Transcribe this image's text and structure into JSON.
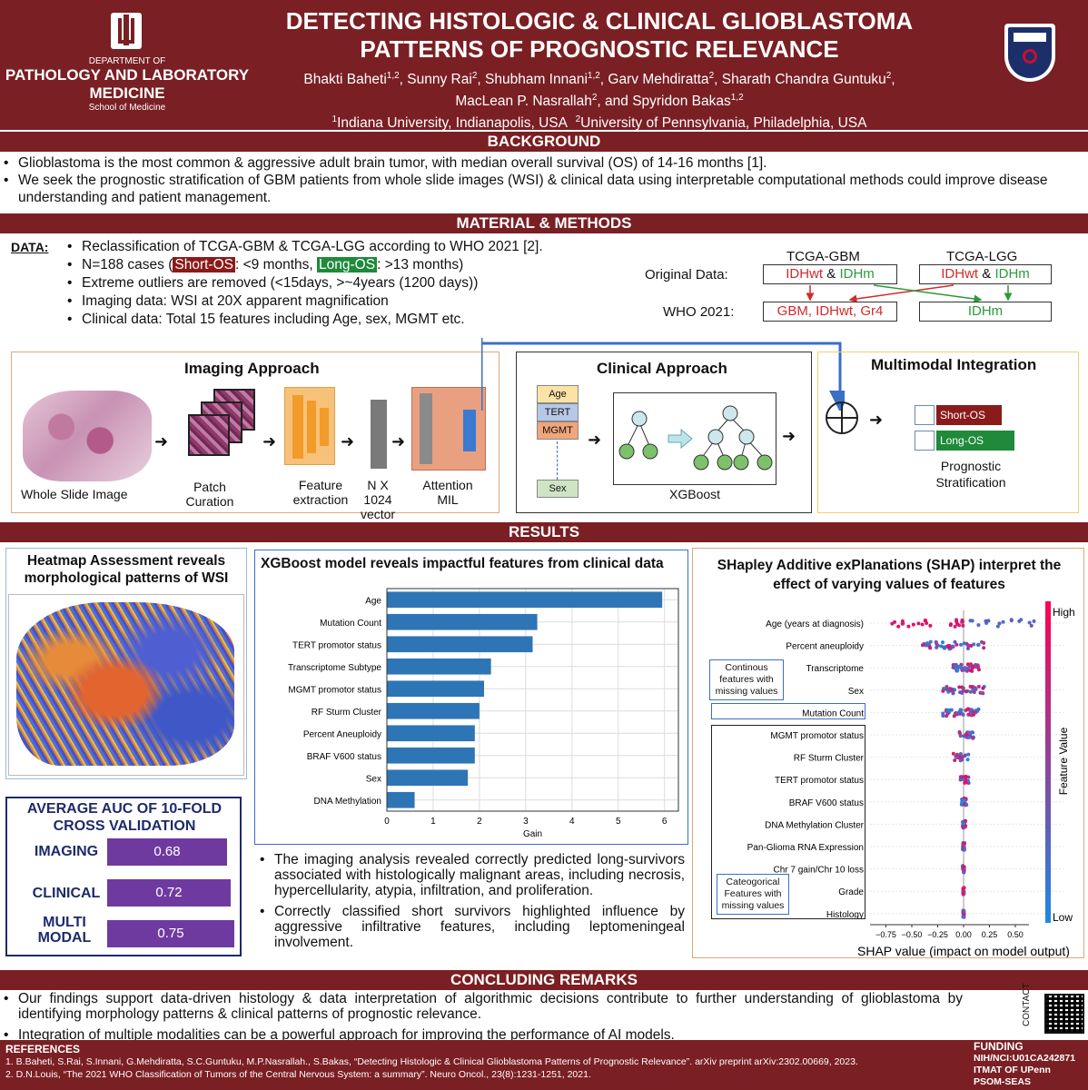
{
  "header": {
    "dept_line1": "DEPARTMENT OF",
    "dept_line2": "PATHOLOGY AND LABORATORY",
    "dept_line3": "MEDICINE",
    "dept_line4": "School of Medicine",
    "title_line1": "DETECTING HISTOLOGIC & CLINICAL GLIOBLASTOMA",
    "title_line2": "PATTERNS OF PROGNOSTIC RELEVANCE",
    "authors": [
      {
        "name": "Bhakti Baheti",
        "aff": "1,2",
        "sep": ", "
      },
      {
        "name": "Sunny Rai",
        "aff": "2",
        "sep": ", "
      },
      {
        "name": "Shubham Innani",
        "aff": "1,2",
        "sep": ", "
      },
      {
        "name": "Garv Mehdiratta",
        "aff": "2",
        "sep": ",  "
      },
      {
        "name": "Sharath Chandra Guntuku",
        "aff": "2",
        "sep": ","
      }
    ],
    "authors2": [
      {
        "name": "MacLean P. Nasrallah",
        "aff": "2",
        "sep": ", and "
      },
      {
        "name": "Spyridon Bakas",
        "aff": "1,2",
        "sep": ""
      }
    ],
    "affil1_num": "1",
    "affil1": "Indiana University, Indianapolis, USA",
    "affil2_num": "2",
    "affil2": "University of Pennsylvania, Philadelphia, USA"
  },
  "background": {
    "heading": "BACKGROUND",
    "bullets": [
      "Glioblastoma is the most common & aggressive adult brain tumor, with median overall survival (OS) of 14-16 months [1].",
      "We seek the prognostic stratification of GBM patients from whole slide images (WSI) & clinical data using interpretable computational methods could improve disease understanding and patient management."
    ]
  },
  "methods": {
    "heading": "MATERIAL & METHODS",
    "data_label": "DATA:",
    "bullet1": "Reclassification of TCGA-GBM & TCGA-LGG according to WHO 2021 [2].",
    "bullet2_pre": "N=188 cases (",
    "short_os": "Short-OS",
    "bullet2_mid": ": <9 months,  ",
    "long_os": "Long-OS",
    "bullet2_post": ": >13 months)",
    "bullet3": "Extreme outliers are removed (<15days, >~4years (1200 days))",
    "bullet4": "Imaging data: WSI at 20X apparent magnification",
    "bullet5": "Clinical data: Total 15 features including Age, sex, MGMT etc.",
    "diag": {
      "gbm": "TCGA-GBM",
      "lgg": "TCGA-LGG",
      "original": "Original Data:",
      "who": "WHO 2021:",
      "idhwt": "IDHwt",
      "amp": "&",
      "idhm": "IDHm",
      "gbm_result": "GBM, IDHwt, Gr4",
      "idhm_result": "IDHm"
    }
  },
  "pipeline": {
    "imaging_title": "Imaging Approach",
    "wsi": "Whole Slide Image",
    "patch": "Patch Curation",
    "feature": "Feature extraction",
    "vector": "N X 1024 vector",
    "attention": "Attention MIL",
    "clinical_title": "Clinical Approach",
    "age": "Age",
    "tert": "TERT",
    "mgmt": "MGMT",
    "sex": "Sex",
    "xgboost": "XGBoost",
    "multimodal_title": "Multimodal Integration",
    "short_os": "Short-OS",
    "long_os": "Long-OS",
    "prognostic": "Prognostic Stratification"
  },
  "results": {
    "heading": "RESULTS",
    "heatmap_title": "Heatmap Assessment reveals morphological patterns of WSI",
    "auc_title": "AVERAGE AUC OF 10-FOLD CROSS VALIDATION",
    "auc": [
      {
        "label": "IMAGING",
        "value": "0.68"
      },
      {
        "label": "CLINICAL",
        "value": "0.72"
      },
      {
        "label": "MULTI MODAL",
        "value": "0.75"
      }
    ],
    "xgb_title": "XGBoost model reveals impactful features from clinical data",
    "findings": [
      "The imaging analysis revealed correctly predicted long-survivors associated with histologically malignant areas, including necrosis, hypercellularity, atypia, infiltration, and proliferation.",
      "Correctly classified short survivors highlighted influence by aggressive infiltrative features, including leptomeningeal involvement."
    ],
    "shap_title": "SHapley Additive exPlanations (SHAP) interpret the effect of varying values of features",
    "shap_features": [
      "Age (years at diagnosis)",
      "Percent aneuploidy",
      "Transcriptome",
      "Sex",
      "Mutation Count",
      "MGMT promotor status",
      "RF Sturm Cluster",
      "TERT promotor status",
      "BRAF V600 status",
      "DNA Methylation Cluster",
      "Pan-Glioma RNA Expression",
      "Chr 7 gain/Chr 10 loss",
      "Grade",
      "Histology"
    ],
    "shap_ticks": [
      "−0.75",
      "−0.50",
      "−0.25",
      "0.00",
      "0.25",
      "0.50"
    ],
    "shap_xlabel": "SHAP value (impact on model output)",
    "shap_high": "High",
    "shap_low": "Low",
    "shap_fv": "Feature Value",
    "continuous_note": "Continous features with missing values",
    "categorical_note": "Cateogorical Features with missing values"
  },
  "chart_data": {
    "type": "bar",
    "orientation": "horizontal",
    "categories": [
      "Age",
      "Mutation Count",
      "TERT promotor status",
      "Transcriptome Subtype",
      "MGMT promotor status",
      "RF Sturm Cluster",
      "Percent Aneuploidy",
      "BRAF V600 status",
      "Sex",
      "DNA Methylation"
    ],
    "values": [
      5.95,
      3.25,
      3.15,
      2.25,
      2.1,
      2.0,
      1.9,
      1.9,
      1.75,
      0.6
    ],
    "xlabel": "Gain",
    "xlim": [
      0,
      6.3
    ],
    "xticks": [
      0,
      1,
      2,
      3,
      4,
      5,
      6
    ],
    "grid": true,
    "color": "#2e75b6"
  },
  "conclusion": {
    "heading": "CONCLUDING REMARKS",
    "bullets": [
      "Our findings support data-driven histology & data interpretation of algorithmic decisions contribute to further understanding of glioblastoma by identifying morphology patterns & clinical patterns of prognostic relevance.",
      "Integration of multiple modalities can be a powerful approach for improving the performance of AI models."
    ],
    "contact": "CONTACT"
  },
  "footer": {
    "refs_heading": "REFERENCES",
    "ref1": "1. B.Baheti, S.Rai, S.Innani, G.Mehdiratta, S.C.Guntuku, M.P.Nasrallah., S.Bakas, “Detecting Histologic & Clinical Glioblastoma Patterns of Prognostic Relevance”. arXiv preprint arXiv:2302.00669, 2023.",
    "ref2": "2. D.N.Louis, “The 2021 WHO Classification of Tumors of the Central Nervous System: a summary”. Neuro Oncol., 23(8):1231-1251, 2021.",
    "funding_heading": "FUNDING",
    "funding1": "NIH/NCI:U01CA242871",
    "funding2": "ITMAT OF UPenn",
    "funding3": "PSOM-SEAS"
  },
  "colors": {
    "maroon": "#7a1f23",
    "short_os": "#8b1a1a",
    "long_os": "#1e8a3a",
    "bar": "#2e75b6",
    "auc": "#6f3aa0"
  }
}
